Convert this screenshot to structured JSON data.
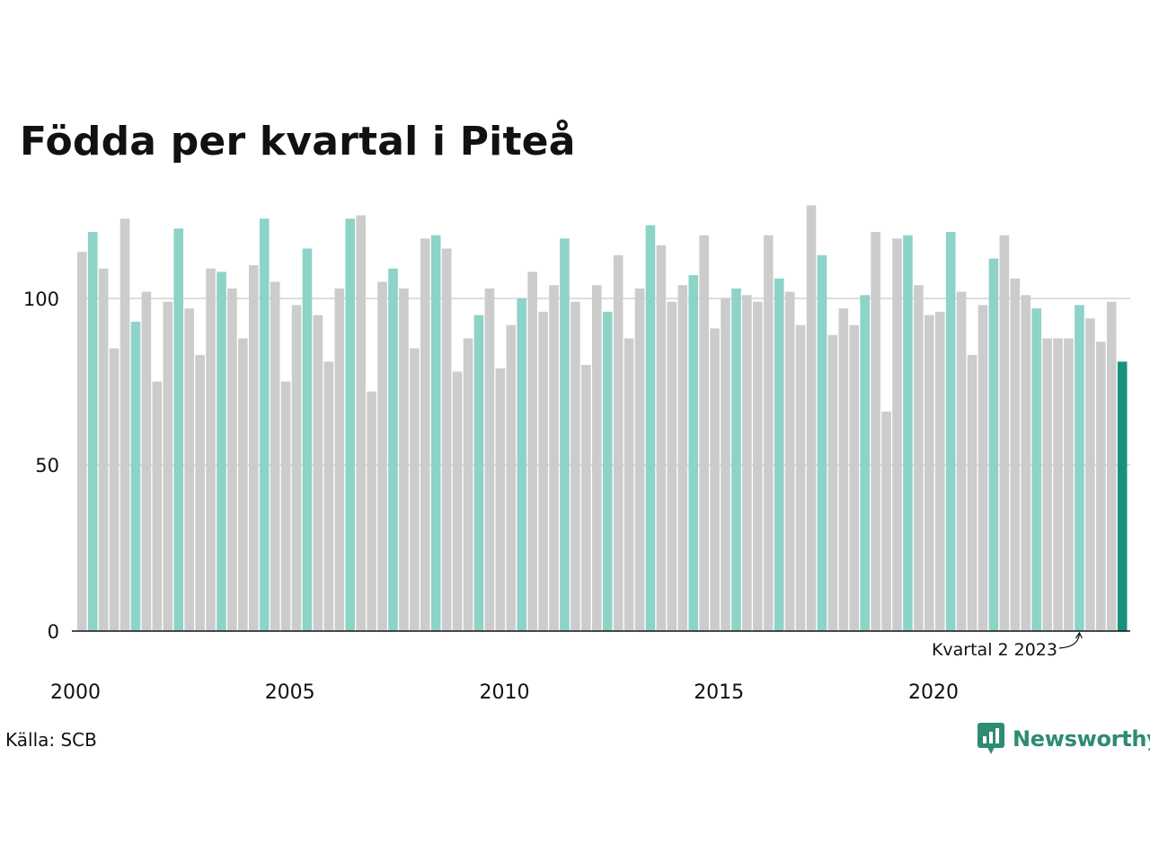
{
  "title": "Födda per kvartal i Piteå",
  "source": "Källa: SCB",
  "brand": "Newsworthy",
  "colors": {
    "other": "#cccccc",
    "same_quarter": "#8dd3c7",
    "highlight": "#17917c",
    "brand": "#2e8b74"
  },
  "chart_data": {
    "type": "bar",
    "title": "Födda per kvartal i Piteå",
    "xlabel": "",
    "ylabel": "",
    "ylim": [
      0,
      130
    ],
    "yticks": [
      0,
      50,
      100
    ],
    "x_tick_labels": [
      "2000",
      "2005",
      "2010",
      "2015",
      "2020"
    ],
    "grid": true,
    "start": {
      "year": 2000,
      "quarter": 1
    },
    "annotation": {
      "text": "Kvartal 2 2023",
      "target": "2023 Q2"
    },
    "values": [
      114,
      120,
      109,
      85,
      124,
      93,
      102,
      75,
      99,
      121,
      97,
      83,
      109,
      108,
      103,
      88,
      110,
      124,
      105,
      75,
      98,
      115,
      95,
      81,
      103,
      124,
      125,
      72,
      105,
      109,
      103,
      85,
      118,
      119,
      115,
      78,
      88,
      95,
      103,
      79,
      92,
      100,
      108,
      96,
      104,
      118,
      99,
      80,
      104,
      96,
      113,
      88,
      103,
      122,
      116,
      99,
      104,
      107,
      119,
      91,
      100,
      103,
      101,
      99,
      119,
      106,
      102,
      92,
      128,
      113,
      89,
      97,
      92,
      101,
      120,
      66,
      118,
      119,
      104,
      95,
      96,
      120,
      102,
      83,
      98,
      112,
      119,
      106,
      101,
      97,
      88,
      88,
      88,
      98,
      94,
      87,
      99,
      81
    ]
  }
}
